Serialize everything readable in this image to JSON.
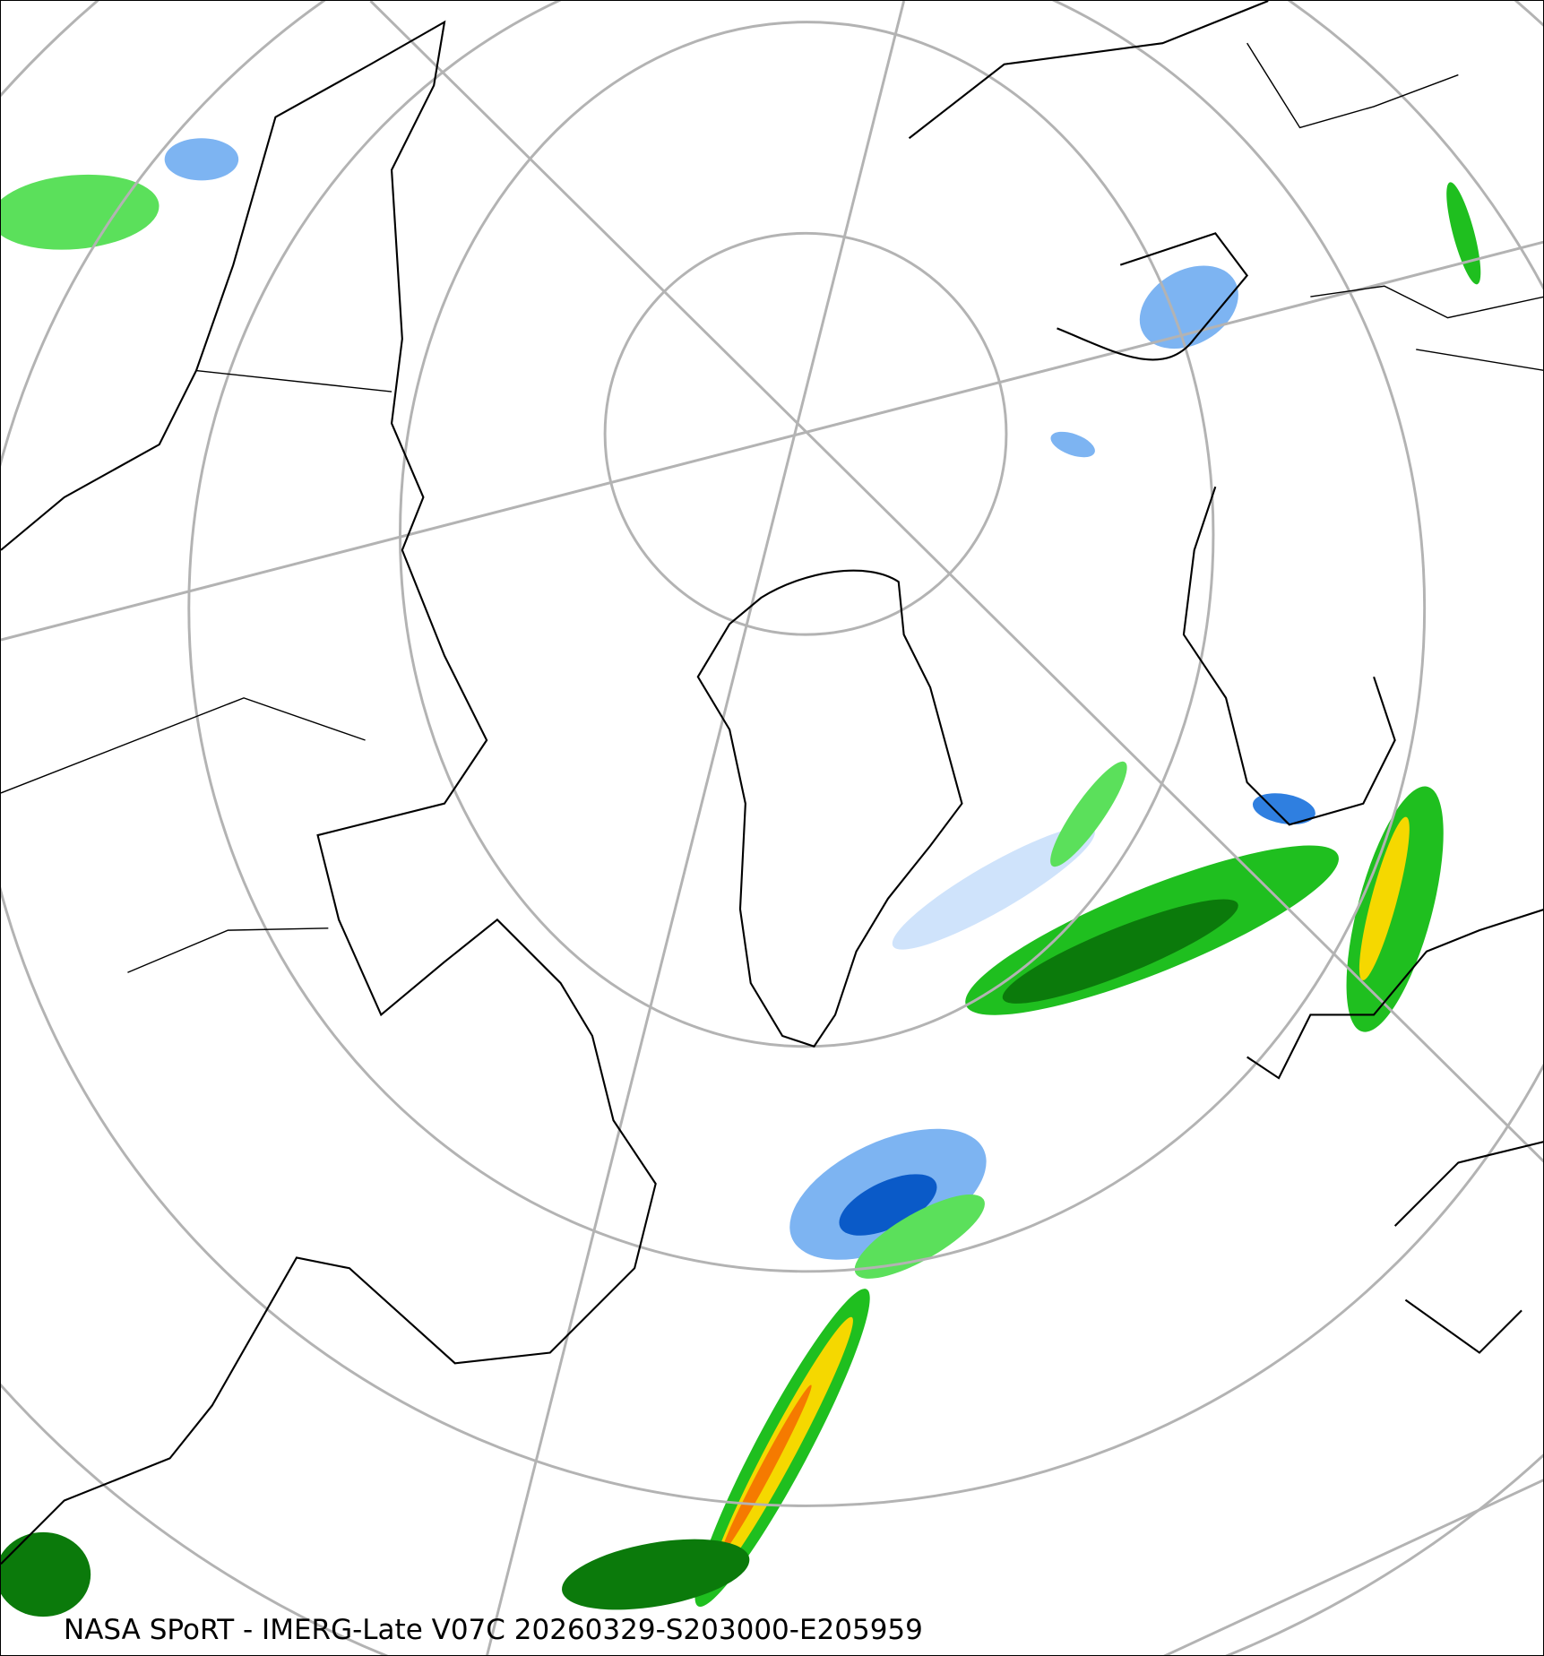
{
  "caption": "NASA SPoRT - IMERG-Late V07C 20260329-S203000-E205959",
  "map": {
    "projection": "polar stereographic (north pole)",
    "graticule_color": "#b3b3b3",
    "coastline_color": "#000000",
    "precip_colors": {
      "light_snow": "#cfe3fb",
      "snow": "#7db4f2",
      "heavy_snow": "#2f7fe0",
      "very_heavy_snow": "#0a5ac8",
      "mixed": "#f080d0",
      "light_rain": "#5be05b",
      "rain": "#1fbf1f",
      "moderate_rain": "#0b7a0b",
      "heavy_rain": "#004d00",
      "very_heavy_rain": "#c8f000",
      "intense_rain": "#f5d800",
      "extreme_rain": "#f57a00"
    }
  }
}
